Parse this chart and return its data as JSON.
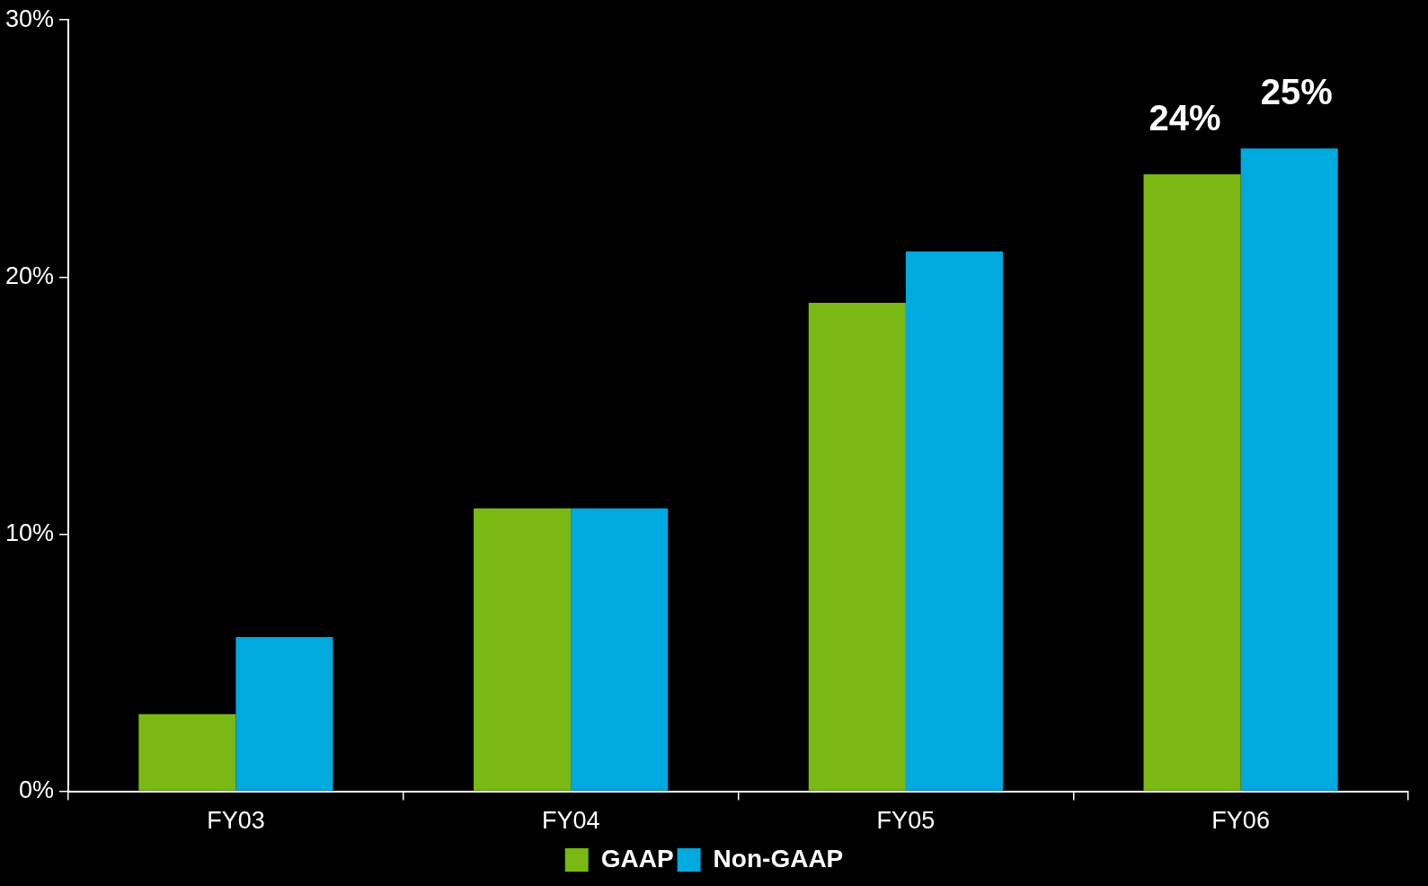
{
  "chart_data": {
    "type": "bar",
    "categories": [
      "FY03",
      "FY04",
      "FY05",
      "FY06"
    ],
    "series": [
      {
        "name": "GAAP",
        "color": "#7ab913",
        "values": [
          3,
          11,
          19,
          24
        ],
        "value_labels": [
          null,
          null,
          null,
          "24%"
        ]
      },
      {
        "name": "Non-GAAP",
        "color": "#00a9de",
        "values": [
          6,
          11,
          21,
          25
        ],
        "value_labels": [
          null,
          null,
          null,
          "25%"
        ]
      }
    ],
    "ylim": [
      0,
      30
    ],
    "yticks": [
      {
        "value": 0,
        "label": "0%"
      },
      {
        "value": 10,
        "label": "10%"
      },
      {
        "value": 20,
        "label": "20%"
      },
      {
        "value": 30,
        "label": "30%"
      }
    ],
    "grid": false,
    "legend": "bottom"
  }
}
